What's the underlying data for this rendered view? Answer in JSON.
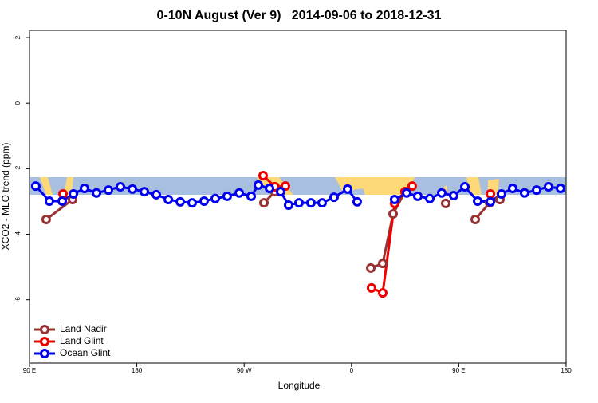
{
  "chart_data": {
    "type": "line",
    "title": "0-10N August (Ver 9)   2014-09-06 to 2018-12-31",
    "xlabel": "Longitude",
    "ylabel": "XCO2 - MLO trend (ppm)",
    "xlim": [
      90,
      540
    ],
    "xticks": [
      {
        "value": 90,
        "label": "90 E"
      },
      180,
      {
        "value": 270,
        "label": "90 W"
      },
      {
        "value": 360,
        "label": "0"
      },
      {
        "value": 450,
        "label": "90 E"
      },
      {
        "value": 540,
        "label": "180"
      }
    ],
    "ylim": [
      -7.93,
      2.22
    ],
    "yticks": [
      -6,
      -4,
      -2,
      0,
      2
    ],
    "legend": "bottom-left",
    "series": [
      {
        "name": "Land Nadir",
        "color": "#993333",
        "x": [
          104.0,
          126.1,
          null,
          286.6,
          295.9,
          300.6,
          null,
          376.2,
          386.2,
          394.9,
          404.9,
          null,
          439.0,
          null,
          463.8,
          475.8,
          484.5
        ],
        "values": [
          -3.55,
          -2.94,
          null,
          -3.04,
          -2.7,
          -2.65,
          null,
          -5.03,
          -4.89,
          -3.38,
          -2.7,
          null,
          -3.06,
          null,
          -3.55,
          -3.04,
          -2.94
        ]
      },
      {
        "name": "Land Glint",
        "color": "#ee0000",
        "x": [
          118.1,
          null,
          285.9,
          295.9,
          304.6,
          null,
          376.8,
          386.2,
          396.2,
          404.9,
          410.9,
          null,
          476.5
        ],
        "values": [
          -2.77,
          null,
          -2.21,
          -2.55,
          -2.53,
          null,
          -5.64,
          -5.79,
          -3.06,
          -2.7,
          -2.53,
          null,
          -2.77
        ]
      },
      {
        "name": "Ocean Glint",
        "color": "#0000ee",
        "x": [
          95.3,
          106.7,
          117.4,
          126.8,
          136.1,
          146.2,
          156.2,
          166.2,
          176.3,
          186.3,
          196.3,
          206.4,
          216.4,
          226.4,
          236.4,
          245.8,
          255.8,
          265.9,
          275.9,
          281.9,
          291.3,
          300.6,
          307.3,
          316.0,
          326.0,
          335.4,
          345.4,
          356.8,
          364.8,
          null,
          396.2,
          406.3,
          415.6,
          425.7,
          435.7,
          445.7,
          455.1,
          465.8,
          476.5,
          485.8,
          495.2,
          505.2,
          515.3,
          525.3,
          535.3
        ],
        "values": [
          -2.53,
          -2.99,
          -2.99,
          -2.77,
          -2.6,
          -2.74,
          -2.65,
          -2.55,
          -2.62,
          -2.7,
          -2.79,
          -2.94,
          -3.01,
          -3.04,
          -2.99,
          -2.91,
          -2.84,
          -2.74,
          -2.84,
          -2.5,
          -2.6,
          -2.7,
          -3.11,
          -3.04,
          -3.04,
          -3.04,
          -2.87,
          -2.62,
          -3.01,
          null,
          -2.94,
          -2.74,
          -2.84,
          -2.91,
          -2.74,
          -2.82,
          -2.55,
          -2.99,
          -3.01,
          -2.77,
          -2.6,
          -2.74,
          -2.65,
          -2.55,
          -2.6
        ]
      }
    ]
  }
}
